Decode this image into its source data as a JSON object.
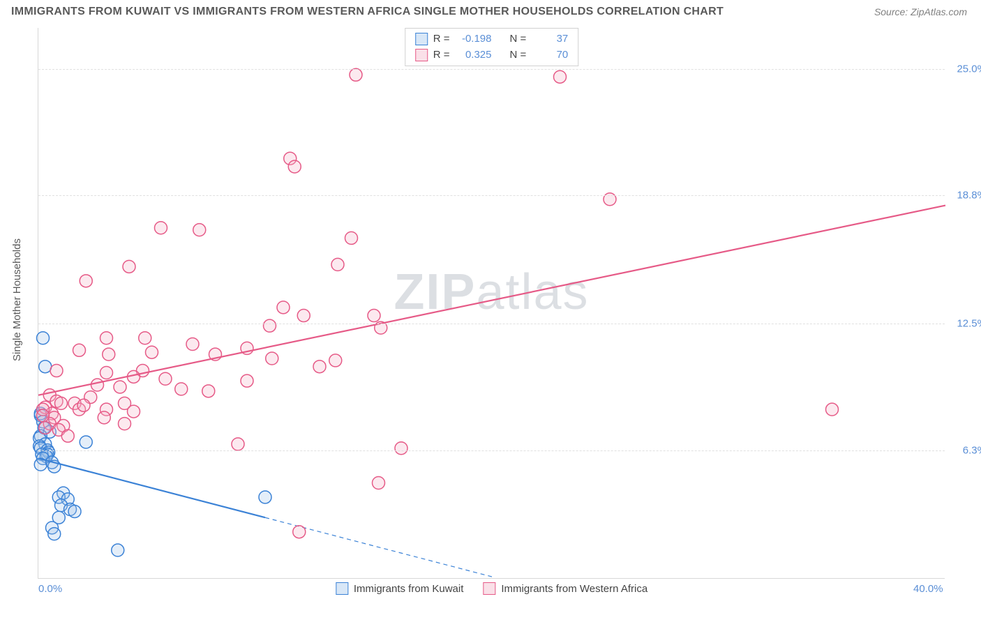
{
  "title_text": "IMMIGRANTS FROM KUWAIT VS IMMIGRANTS FROM WESTERN AFRICA SINGLE MOTHER HOUSEHOLDS CORRELATION CHART",
  "source_text": "Source: ZipAtlas.com",
  "watermark_a": "ZIP",
  "watermark_b": "atlas",
  "y_axis_title": "Single Mother Households",
  "chart": {
    "type": "scatter",
    "xlim": [
      0,
      40
    ],
    "ylim": [
      0,
      27
    ],
    "x_ticks": [
      {
        "v": 0,
        "label": "0.0%"
      },
      {
        "v": 40,
        "label": "40.0%"
      }
    ],
    "y_ticks": [
      {
        "v": 6.3,
        "label": "6.3%"
      },
      {
        "v": 12.5,
        "label": "12.5%"
      },
      {
        "v": 18.8,
        "label": "18.8%"
      },
      {
        "v": 25.0,
        "label": "25.0%"
      }
    ],
    "grid_color": "#e0e0e0",
    "background_color": "#ffffff",
    "marker_radius": 9,
    "marker_stroke_width": 1.5,
    "marker_fill_opacity": 0.28,
    "trend_line_width": 2.2,
    "trend_dash_pattern": "6,5",
    "series": [
      {
        "key": "kuwait",
        "label": "Immigrants from Kuwait",
        "color_stroke": "#3b82d6",
        "color_fill": "#9dc3eb",
        "r_value": "-0.198",
        "n_value": "37",
        "trend": {
          "x1": 0,
          "y1": 5.9,
          "x2_solid": 10,
          "y2_solid": 3.0,
          "x2_dash": 20,
          "y2_dash": 0.1
        },
        "points": [
          [
            0.2,
            11.8
          ],
          [
            0.3,
            10.4
          ],
          [
            0.1,
            8.0
          ],
          [
            0.1,
            8.1
          ],
          [
            0.2,
            7.7
          ],
          [
            0.25,
            7.4
          ],
          [
            0.5,
            7.2
          ],
          [
            0.1,
            7.0
          ],
          [
            0.05,
            6.9
          ],
          [
            0.3,
            6.6
          ],
          [
            0.05,
            6.5
          ],
          [
            0.1,
            6.4
          ],
          [
            0.4,
            6.3
          ],
          [
            0.45,
            6.2
          ],
          [
            0.4,
            6.1
          ],
          [
            0.15,
            6.1
          ],
          [
            0.35,
            6.0
          ],
          [
            0.2,
            5.9
          ],
          [
            0.1,
            5.6
          ],
          [
            0.6,
            5.7
          ],
          [
            0.7,
            5.5
          ],
          [
            2.1,
            6.7
          ],
          [
            1.1,
            4.2
          ],
          [
            0.9,
            4.0
          ],
          [
            1.3,
            3.9
          ],
          [
            1.0,
            3.6
          ],
          [
            1.4,
            3.4
          ],
          [
            1.6,
            3.3
          ],
          [
            0.9,
            3.0
          ],
          [
            0.6,
            2.5
          ],
          [
            0.7,
            2.2
          ],
          [
            3.5,
            1.4
          ],
          [
            10.0,
            4.0
          ]
        ]
      },
      {
        "key": "western_africa",
        "label": "Immigrants from Western Africa",
        "color_stroke": "#e65a87",
        "color_fill": "#f3b1c6",
        "r_value": "0.325",
        "n_value": "70",
        "trend": {
          "x1": 0,
          "y1": 9.0,
          "x2_solid": 40,
          "y2_solid": 18.3,
          "x2_dash": 40,
          "y2_dash": 18.3
        },
        "points": [
          [
            14.0,
            24.7
          ],
          [
            23.0,
            24.6
          ],
          [
            11.1,
            20.6
          ],
          [
            11.3,
            20.2
          ],
          [
            5.4,
            17.2
          ],
          [
            7.1,
            17.1
          ],
          [
            4.0,
            15.3
          ],
          [
            2.1,
            14.6
          ],
          [
            13.8,
            16.7
          ],
          [
            13.2,
            15.4
          ],
          [
            25.2,
            18.6
          ],
          [
            10.8,
            13.3
          ],
          [
            11.7,
            12.9
          ],
          [
            14.8,
            12.9
          ],
          [
            10.2,
            12.4
          ],
          [
            15.1,
            12.3
          ],
          [
            3.0,
            11.8
          ],
          [
            4.7,
            11.8
          ],
          [
            6.8,
            11.5
          ],
          [
            1.8,
            11.2
          ],
          [
            5.0,
            11.1
          ],
          [
            9.2,
            11.3
          ],
          [
            3.1,
            11.0
          ],
          [
            7.8,
            11.0
          ],
          [
            10.3,
            10.8
          ],
          [
            13.1,
            10.7
          ],
          [
            12.4,
            10.4
          ],
          [
            0.8,
            10.2
          ],
          [
            3.0,
            10.1
          ],
          [
            4.6,
            10.2
          ],
          [
            4.2,
            9.9
          ],
          [
            5.6,
            9.8
          ],
          [
            9.2,
            9.7
          ],
          [
            2.6,
            9.5
          ],
          [
            3.6,
            9.4
          ],
          [
            6.3,
            9.3
          ],
          [
            7.5,
            9.2
          ],
          [
            2.3,
            8.9
          ],
          [
            0.5,
            9.0
          ],
          [
            0.8,
            8.7
          ],
          [
            1.0,
            8.6
          ],
          [
            1.6,
            8.6
          ],
          [
            0.3,
            8.4
          ],
          [
            1.8,
            8.3
          ],
          [
            0.6,
            8.1
          ],
          [
            0.2,
            8.3
          ],
          [
            3.8,
            8.6
          ],
          [
            2.0,
            8.5
          ],
          [
            3.0,
            8.3
          ],
          [
            4.2,
            8.2
          ],
          [
            0.7,
            7.9
          ],
          [
            2.9,
            7.9
          ],
          [
            0.5,
            7.6
          ],
          [
            1.1,
            7.5
          ],
          [
            0.3,
            7.4
          ],
          [
            0.9,
            7.3
          ],
          [
            0.2,
            8.0
          ],
          [
            1.3,
            7.0
          ],
          [
            3.8,
            7.6
          ],
          [
            8.8,
            6.6
          ],
          [
            16.0,
            6.4
          ],
          [
            35.0,
            8.3
          ],
          [
            15.0,
            4.7
          ],
          [
            11.5,
            2.3
          ]
        ]
      }
    ]
  },
  "stats_box": {
    "rows": [
      {
        "series": "kuwait"
      },
      {
        "series": "western_africa"
      }
    ],
    "r_label": "R =",
    "n_label": "N ="
  }
}
